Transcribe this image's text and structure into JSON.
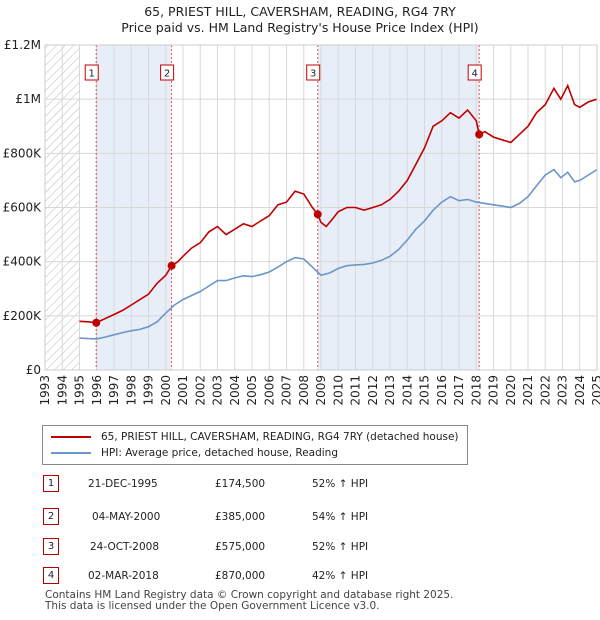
{
  "title": {
    "line1": "65, PRIEST HILL, CAVERSHAM, READING, RG4 7RY",
    "line2": "Price paid vs. HM Land Registry's House Price Index (HPI)"
  },
  "colors": {
    "property": "#c00000",
    "hpi": "#6a96c8",
    "grid": "#d8d8d8",
    "band": "#e8eef8"
  },
  "chart_data": {
    "type": "line",
    "title": "Price paid vs. HM Land Registry's House Price Index (HPI)",
    "xlim": [
      1993,
      2025
    ],
    "ylim": [
      0,
      1200000
    ],
    "y_ticks": [
      0,
      200000,
      400000,
      600000,
      800000,
      1000000,
      1200000
    ],
    "y_tick_labels": [
      "£0",
      "£200K",
      "£400K",
      "£600K",
      "£800K",
      "£1M",
      "£1.2M"
    ],
    "x_ticks": [
      1993,
      1994,
      1995,
      1996,
      1997,
      1998,
      1999,
      2000,
      2001,
      2002,
      2003,
      2004,
      2005,
      2006,
      2007,
      2008,
      2009,
      2010,
      2011,
      2012,
      2013,
      2014,
      2015,
      2016,
      2017,
      2018,
      2019,
      2020,
      2021,
      2022,
      2023,
      2024,
      2025
    ],
    "hatched_before": 1995.0,
    "series": [
      {
        "name": "65, PRIEST HILL, CAVERSHAM, READING, RG4 7RY (detached house)",
        "color": "#c00000",
        "x": [
          1995.0,
          1995.5,
          1995.97,
          1996.5,
          1997.0,
          1997.5,
          1998.0,
          1998.5,
          1999.0,
          1999.5,
          2000.0,
          2000.34,
          2000.7,
          2001.0,
          2001.5,
          2002.0,
          2002.5,
          2003.0,
          2003.5,
          2004.0,
          2004.5,
          2005.0,
          2005.5,
          2006.0,
          2006.5,
          2007.0,
          2007.5,
          2008.0,
          2008.5,
          2008.81,
          2009.0,
          2009.3,
          2009.7,
          2010.0,
          2010.5,
          2011.0,
          2011.5,
          2012.0,
          2012.5,
          2013.0,
          2013.5,
          2014.0,
          2014.5,
          2015.0,
          2015.5,
          2016.0,
          2016.5,
          2017.0,
          2017.5,
          2018.0,
          2018.17,
          2018.5,
          2019.0,
          2019.5,
          2020.0,
          2020.5,
          2021.0,
          2021.5,
          2022.0,
          2022.5,
          2022.9,
          2023.3,
          2023.7,
          2024.0,
          2024.5,
          2025.0
        ],
        "values": [
          180000,
          178000,
          174500,
          190000,
          205000,
          220000,
          240000,
          260000,
          280000,
          320000,
          350000,
          385000,
          400000,
          420000,
          450000,
          470000,
          510000,
          530000,
          500000,
          520000,
          540000,
          530000,
          550000,
          570000,
          610000,
          620000,
          660000,
          650000,
          600000,
          575000,
          545000,
          530000,
          560000,
          585000,
          600000,
          600000,
          590000,
          600000,
          610000,
          630000,
          660000,
          700000,
          760000,
          820000,
          900000,
          920000,
          950000,
          930000,
          960000,
          920000,
          870000,
          880000,
          860000,
          850000,
          840000,
          870000,
          900000,
          950000,
          980000,
          1040000,
          1000000,
          1050000,
          980000,
          970000,
          990000,
          1000000
        ]
      },
      {
        "name": "HPI: Average price, detached house, Reading",
        "color": "#6a96c8",
        "x": [
          1995.0,
          1995.5,
          1996.0,
          1996.5,
          1997.0,
          1997.5,
          1998.0,
          1998.5,
          1999.0,
          1999.5,
          2000.0,
          2000.5,
          2001.0,
          2001.5,
          2002.0,
          2002.5,
          2003.0,
          2003.5,
          2004.0,
          2004.5,
          2005.0,
          2005.5,
          2006.0,
          2006.5,
          2007.0,
          2007.5,
          2008.0,
          2008.5,
          2009.0,
          2009.5,
          2010.0,
          2010.5,
          2011.0,
          2011.5,
          2012.0,
          2012.5,
          2013.0,
          2013.5,
          2014.0,
          2014.5,
          2015.0,
          2015.5,
          2016.0,
          2016.5,
          2017.0,
          2017.5,
          2018.0,
          2018.5,
          2019.0,
          2019.5,
          2020.0,
          2020.5,
          2021.0,
          2021.5,
          2022.0,
          2022.5,
          2022.9,
          2023.3,
          2023.7,
          2024.0,
          2024.5,
          2025.0
        ],
        "values": [
          118000,
          116000,
          115000,
          122000,
          130000,
          138000,
          145000,
          150000,
          160000,
          178000,
          210000,
          240000,
          260000,
          275000,
          290000,
          310000,
          330000,
          330000,
          340000,
          348000,
          345000,
          352000,
          362000,
          380000,
          400000,
          415000,
          410000,
          380000,
          350000,
          358000,
          375000,
          385000,
          388000,
          390000,
          395000,
          405000,
          420000,
          445000,
          480000,
          520000,
          550000,
          590000,
          620000,
          640000,
          625000,
          630000,
          620000,
          615000,
          610000,
          605000,
          600000,
          615000,
          640000,
          680000,
          720000,
          740000,
          710000,
          730000,
          695000,
          700000,
          720000,
          740000
        ]
      }
    ],
    "sales": [
      {
        "label": "1",
        "x": 1995.97,
        "value": 174500
      },
      {
        "label": "2",
        "x": 2000.34,
        "value": 385000
      },
      {
        "label": "3",
        "x": 2008.81,
        "value": 575000
      },
      {
        "label": "4",
        "x": 2018.17,
        "value": 870000
      }
    ]
  },
  "legend": {
    "property": "65, PRIEST HILL, CAVERSHAM, READING, RG4 7RY (detached house)",
    "hpi": "HPI: Average price, detached house, Reading"
  },
  "transactions": [
    {
      "num": "1",
      "date": "21-DEC-1995",
      "price": "£174,500",
      "hpi": "52% ↑ HPI"
    },
    {
      "num": "2",
      "date": "04-MAY-2000",
      "price": "£385,000",
      "hpi": "54% ↑ HPI"
    },
    {
      "num": "3",
      "date": "24-OCT-2008",
      "price": "£575,000",
      "hpi": "52% ↑ HPI"
    },
    {
      "num": "4",
      "date": "02-MAR-2018",
      "price": "£870,000",
      "hpi": "42% ↑ HPI"
    }
  ],
  "footer": {
    "line1": "Contains HM Land Registry data © Crown copyright and database right 2025.",
    "line2": "This data is licensed under the Open Government Licence v3.0."
  }
}
